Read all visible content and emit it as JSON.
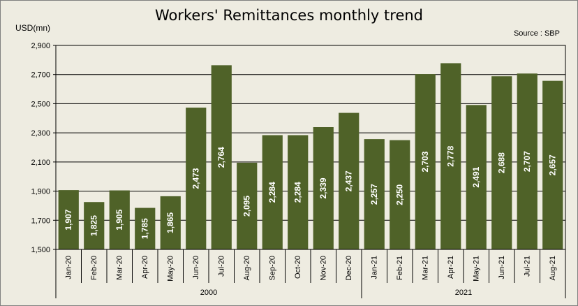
{
  "title": "Workers' Remittances monthly trend",
  "y_unit_label": "USD(mn)",
  "source": "Source : SBP",
  "colors": {
    "bar": "#4f6228",
    "plot_bg": "#eeece1",
    "grid": "#000000",
    "bar_label": "#ffffff"
  },
  "chart_data": {
    "type": "bar",
    "title": "Workers' Remittances monthly trend",
    "ylabel": "USD(mn)",
    "xlabel": "",
    "ylim": [
      1500,
      2900
    ],
    "yticks": [
      1500,
      1700,
      1900,
      2100,
      2300,
      2500,
      2700,
      2900
    ],
    "ytick_labels": [
      "1,500",
      "1,700",
      "1,900",
      "2,100",
      "2,300",
      "2,500",
      "2,700",
      "2,900"
    ],
    "grid": true,
    "categories": [
      "Jan-20",
      "Feb-20",
      "Mar-20",
      "Apr-20",
      "May-20",
      "Jun-20",
      "Jul-20",
      "Aug-20",
      "Sep-20",
      "Oct-20",
      "Nov-20",
      "Dec-20",
      "Jan-21",
      "Feb-21",
      "Mar-21",
      "Apr-21",
      "May-21",
      "Jun-21",
      "Jul-21",
      "Aug-21"
    ],
    "values": [
      1907,
      1825,
      1905,
      1785,
      1865,
      2473,
      2764,
      2095,
      2284,
      2284,
      2339,
      2437,
      2257,
      2250,
      2703,
      2778,
      2491,
      2688,
      2707,
      2657
    ],
    "value_labels": [
      "1,907",
      "1,825",
      "1,905",
      "1,785",
      "1,865",
      "2,473",
      "2,764",
      "2,095",
      "2,284",
      "2,284",
      "2,339",
      "2,437",
      "2,257",
      "2,250",
      "2,703",
      "2,778",
      "2,491",
      "2,688",
      "2,707",
      "2,657"
    ],
    "groups": [
      {
        "label": "2000",
        "start": 0,
        "end": 11
      },
      {
        "label": "2021",
        "start": 12,
        "end": 19
      }
    ]
  }
}
